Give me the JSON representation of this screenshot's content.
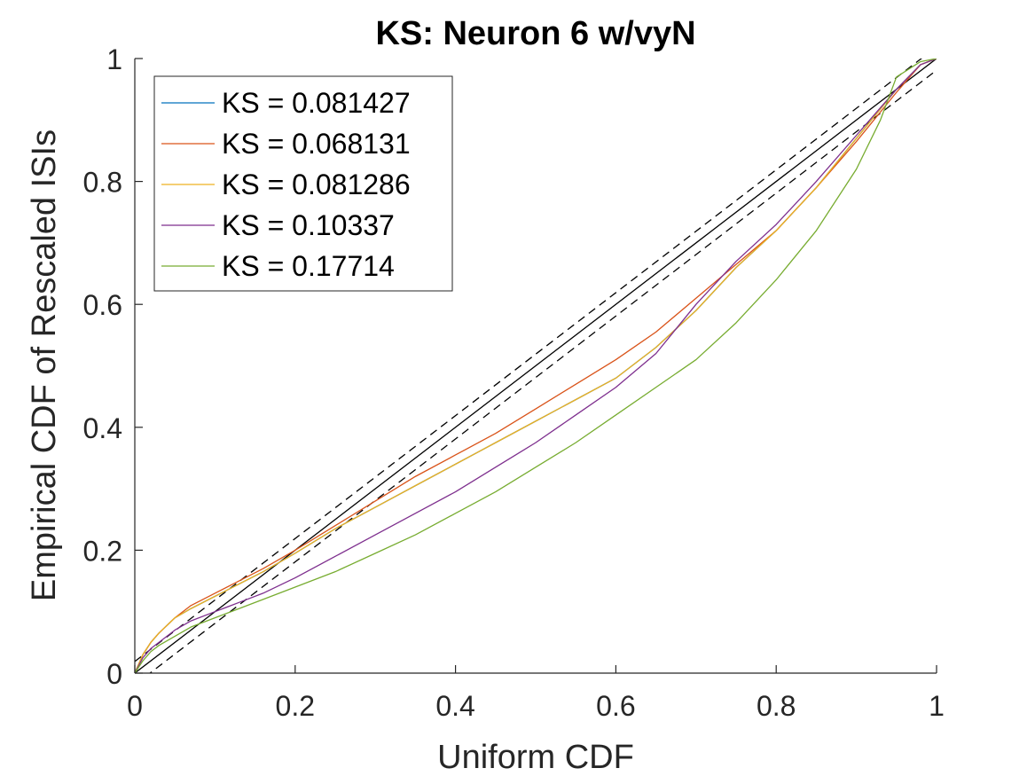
{
  "chart_data": {
    "type": "line",
    "title": "KS: Neuron 6 w/vyN",
    "xlabel": "Uniform CDF",
    "ylabel": "Empirical CDF of Rescaled ISIs",
    "xlim": [
      0,
      1
    ],
    "ylim": [
      0,
      1
    ],
    "xticks": [
      "0",
      "0.2",
      "0.4",
      "0.6",
      "0.8",
      "1"
    ],
    "yticks": [
      "0",
      "0.2",
      "0.4",
      "0.6",
      "0.8",
      "1"
    ],
    "legend_position": "top-left",
    "grid": false,
    "series": [
      {
        "name": "KS = 0.081427",
        "color": "#0072BD",
        "x": [
          0,
          0.01,
          0.02,
          0.03,
          0.05,
          0.07,
          0.1,
          0.13,
          0.16,
          0.2,
          0.25,
          0.3,
          0.35,
          0.4,
          0.45,
          0.5,
          0.55,
          0.6,
          0.65,
          0.7,
          0.75,
          0.8,
          0.85,
          0.9,
          0.95,
          0.98,
          1
        ],
        "y": [
          0,
          0.03,
          0.05,
          0.065,
          0.09,
          0.105,
          0.125,
          0.145,
          0.165,
          0.195,
          0.235,
          0.27,
          0.305,
          0.34,
          0.375,
          0.41,
          0.445,
          0.48,
          0.53,
          0.59,
          0.66,
          0.72,
          0.79,
          0.87,
          0.95,
          0.99,
          1
        ]
      },
      {
        "name": "KS = 0.068131",
        "color": "#D95319",
        "x": [
          0,
          0.01,
          0.02,
          0.03,
          0.05,
          0.07,
          0.1,
          0.13,
          0.16,
          0.2,
          0.25,
          0.3,
          0.35,
          0.4,
          0.45,
          0.5,
          0.55,
          0.6,
          0.65,
          0.7,
          0.75,
          0.8,
          0.85,
          0.9,
          0.95,
          0.98,
          1
        ],
        "y": [
          0,
          0.03,
          0.05,
          0.065,
          0.09,
          0.11,
          0.13,
          0.15,
          0.17,
          0.2,
          0.24,
          0.28,
          0.32,
          0.355,
          0.39,
          0.43,
          0.47,
          0.51,
          0.555,
          0.61,
          0.665,
          0.72,
          0.79,
          0.865,
          0.945,
          0.99,
          1
        ]
      },
      {
        "name": "KS = 0.081286",
        "color": "#EDB120",
        "x": [
          0,
          0.01,
          0.02,
          0.03,
          0.05,
          0.07,
          0.1,
          0.13,
          0.16,
          0.2,
          0.25,
          0.3,
          0.35,
          0.4,
          0.45,
          0.5,
          0.55,
          0.6,
          0.65,
          0.7,
          0.75,
          0.8,
          0.85,
          0.9,
          0.95,
          0.98,
          1
        ],
        "y": [
          0,
          0.03,
          0.05,
          0.065,
          0.09,
          0.105,
          0.125,
          0.145,
          0.165,
          0.195,
          0.235,
          0.27,
          0.305,
          0.34,
          0.375,
          0.41,
          0.445,
          0.48,
          0.53,
          0.59,
          0.66,
          0.72,
          0.79,
          0.87,
          0.95,
          0.99,
          1
        ]
      },
      {
        "name": "KS = 0.10337",
        "color": "#7E2F8E",
        "x": [
          0,
          0.01,
          0.02,
          0.03,
          0.05,
          0.07,
          0.1,
          0.13,
          0.16,
          0.2,
          0.25,
          0.3,
          0.35,
          0.4,
          0.45,
          0.5,
          0.55,
          0.6,
          0.65,
          0.7,
          0.75,
          0.8,
          0.85,
          0.9,
          0.95,
          0.98,
          1
        ],
        "y": [
          0,
          0.025,
          0.04,
          0.05,
          0.07,
          0.085,
          0.1,
          0.115,
          0.13,
          0.155,
          0.19,
          0.225,
          0.26,
          0.295,
          0.335,
          0.375,
          0.42,
          0.465,
          0.52,
          0.6,
          0.67,
          0.73,
          0.8,
          0.875,
          0.95,
          0.99,
          1
        ]
      },
      {
        "name": "KS = 0.17714",
        "color": "#77AC30",
        "x": [
          0,
          0.01,
          0.02,
          0.03,
          0.05,
          0.07,
          0.1,
          0.13,
          0.16,
          0.2,
          0.25,
          0.3,
          0.35,
          0.4,
          0.45,
          0.5,
          0.55,
          0.6,
          0.65,
          0.7,
          0.75,
          0.8,
          0.85,
          0.9,
          0.93,
          0.95,
          0.98,
          1
        ],
        "y": [
          0,
          0.02,
          0.035,
          0.045,
          0.06,
          0.075,
          0.09,
          0.105,
          0.12,
          0.14,
          0.165,
          0.195,
          0.225,
          0.26,
          0.295,
          0.335,
          0.375,
          0.42,
          0.465,
          0.51,
          0.57,
          0.64,
          0.72,
          0.82,
          0.9,
          0.97,
          0.995,
          1
        ]
      }
    ],
    "reference_lines": [
      {
        "style": "solid",
        "color": "#000000",
        "x": [
          0,
          1
        ],
        "y": [
          0,
          1
        ]
      },
      {
        "style": "dashed",
        "color": "#000000",
        "x": [
          0,
          1
        ],
        "y": [
          0.019,
          1.019
        ]
      },
      {
        "style": "dashed",
        "color": "#000000",
        "x": [
          0,
          1
        ],
        "y": [
          -0.019,
          0.981
        ]
      }
    ]
  }
}
